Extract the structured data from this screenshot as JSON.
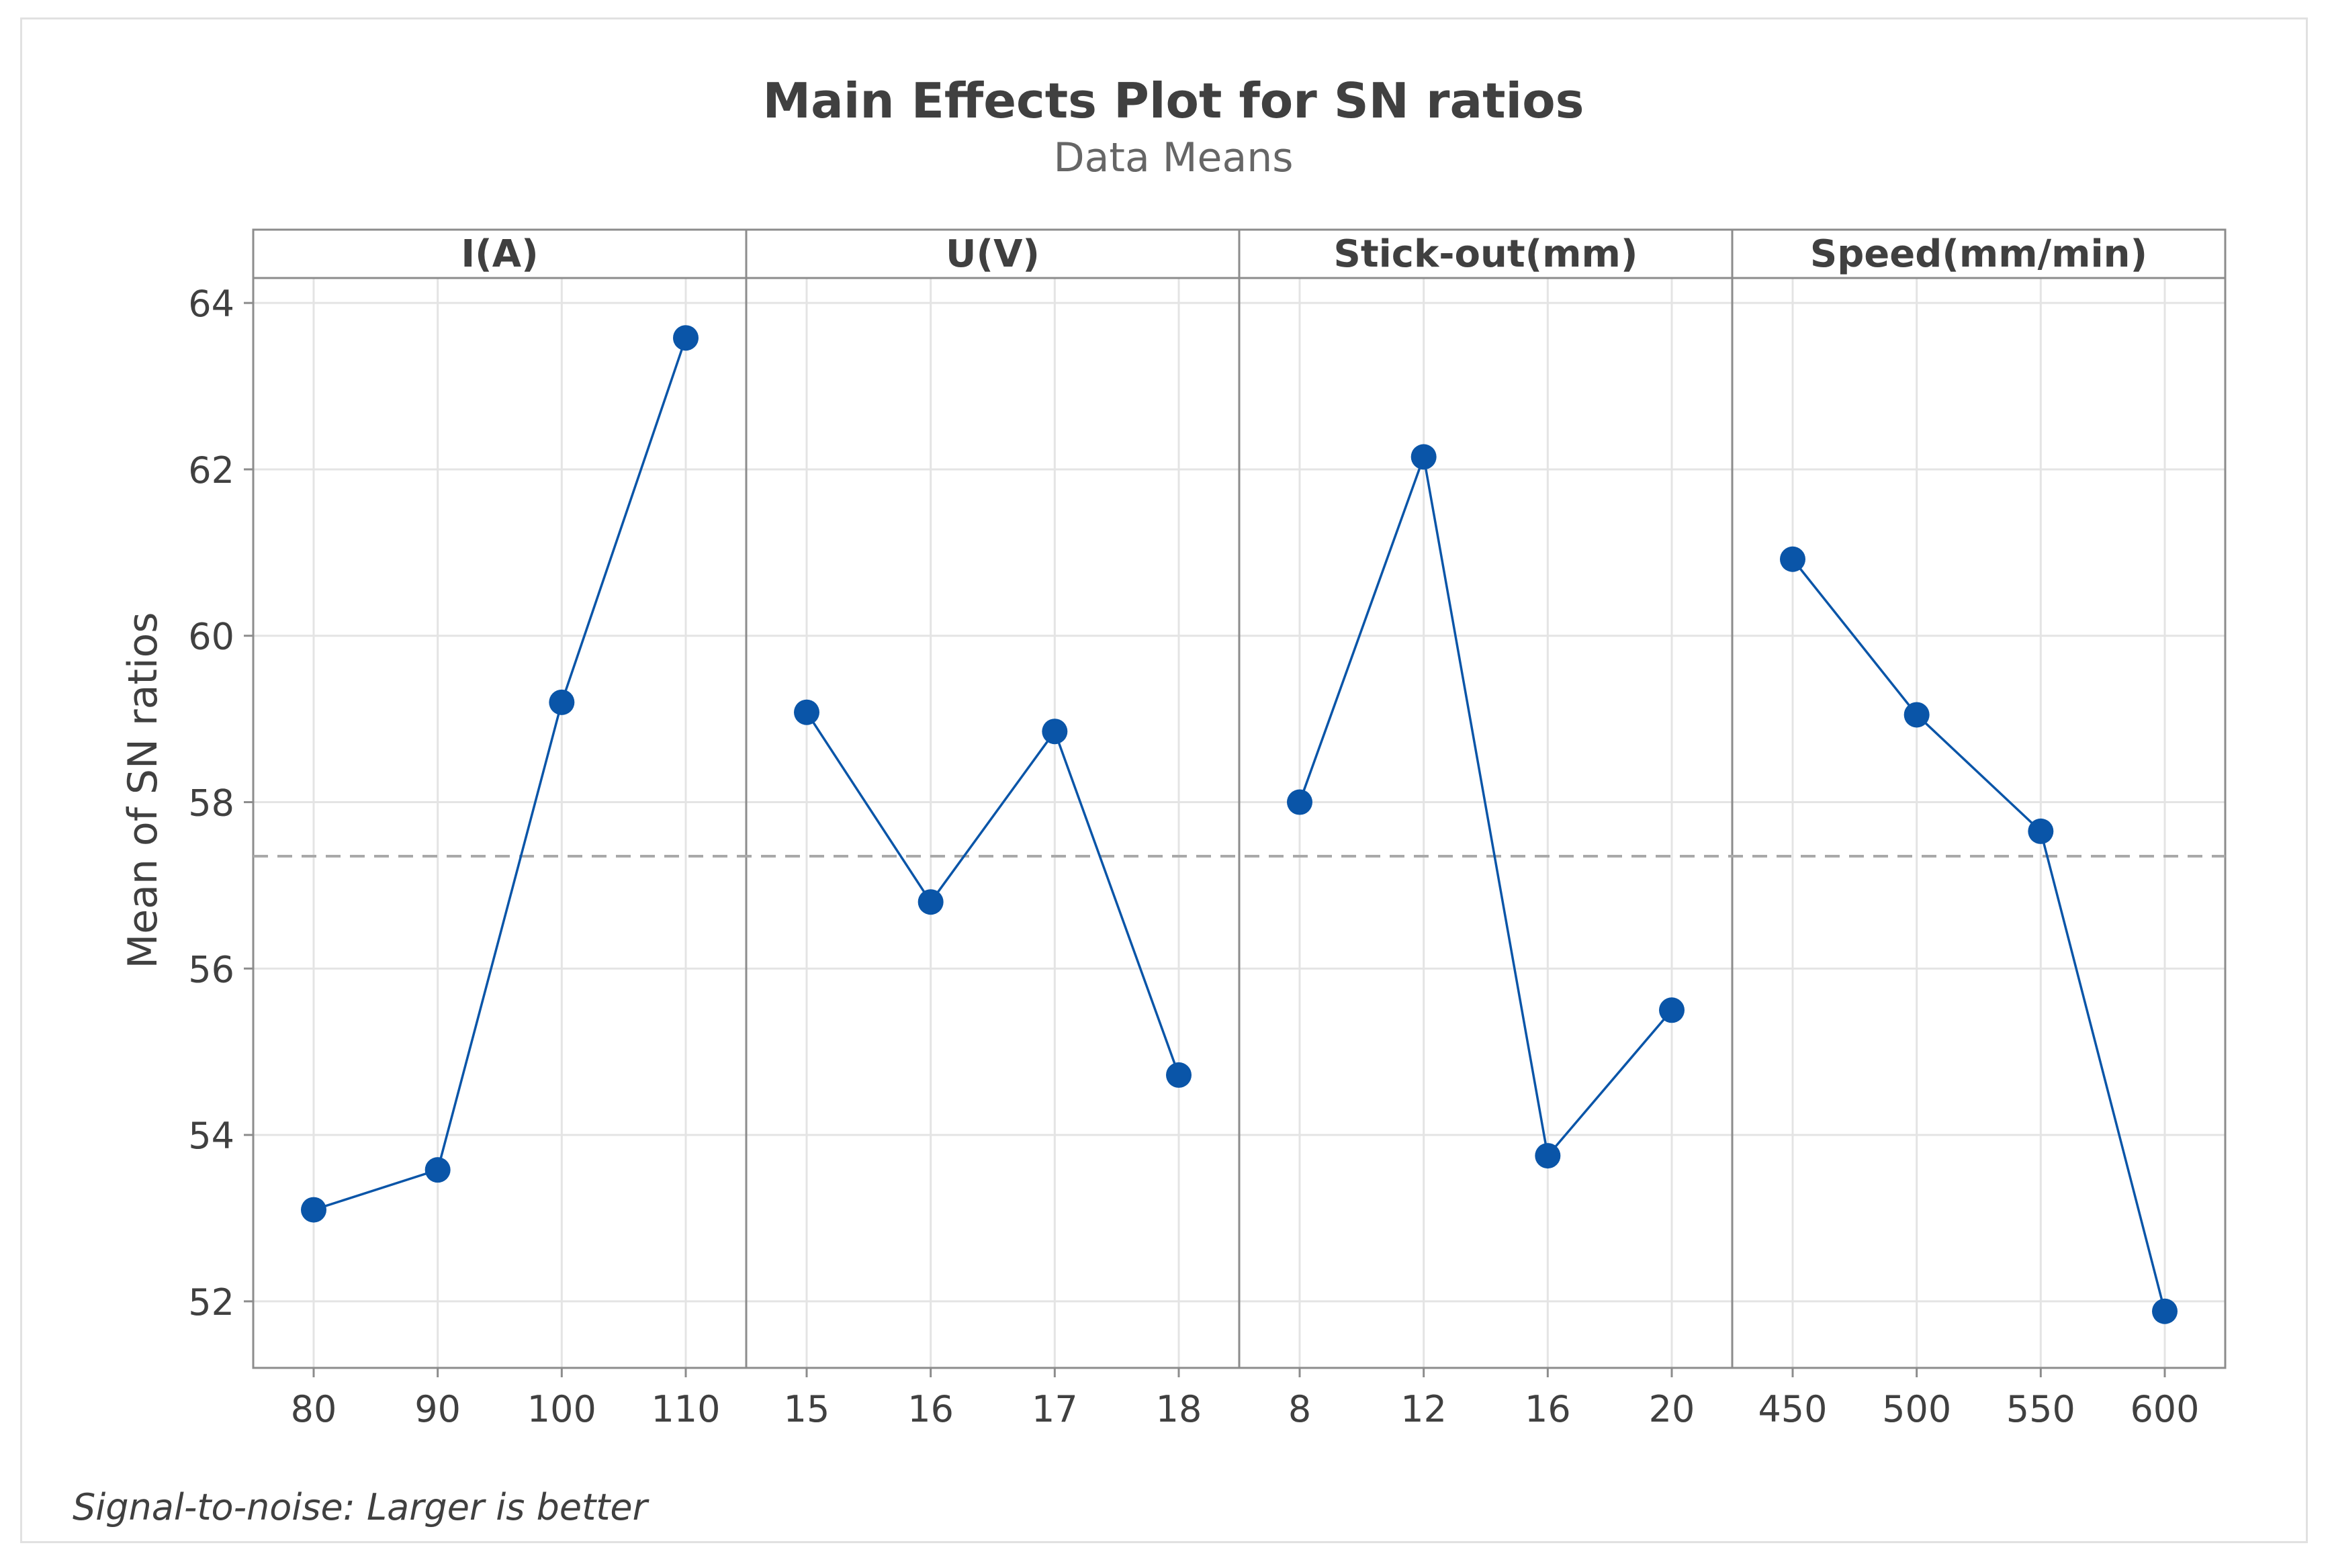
{
  "chart_data": {
    "type": "line",
    "title": "Main Effects Plot for SN ratios",
    "subtitle": "Data Means",
    "ylabel": "Mean of SN ratios",
    "ylim": [
      51.2,
      64.3
    ],
    "yticks": [
      52,
      54,
      56,
      58,
      60,
      62,
      64
    ],
    "reference_mean": 57.35,
    "grid": true,
    "footnote": "Signal-to-noise: Larger is better",
    "colors": {
      "series": "#0a55a8",
      "marker": "#0a55a8",
      "grid": "#e4e4e4",
      "reference": "#a9a9a9",
      "panel_border": "#8c8c8c",
      "text": "#404040"
    },
    "panels": [
      {
        "label": "I(A)",
        "categories": [
          "80",
          "90",
          "100",
          "110"
        ],
        "values": [
          53.1,
          53.58,
          59.2,
          63.58
        ]
      },
      {
        "label": "U(V)",
        "categories": [
          "15",
          "16",
          "17",
          "18"
        ],
        "values": [
          59.08,
          56.8,
          58.85,
          54.72
        ]
      },
      {
        "label": "Stick-out(mm)",
        "categories": [
          "8",
          "12",
          "16",
          "20"
        ],
        "values": [
          58.0,
          62.15,
          53.75,
          55.5
        ]
      },
      {
        "label": "Speed(mm/min)",
        "categories": [
          "450",
          "500",
          "550",
          "600"
        ],
        "values": [
          60.92,
          59.05,
          57.65,
          51.88
        ]
      }
    ]
  }
}
